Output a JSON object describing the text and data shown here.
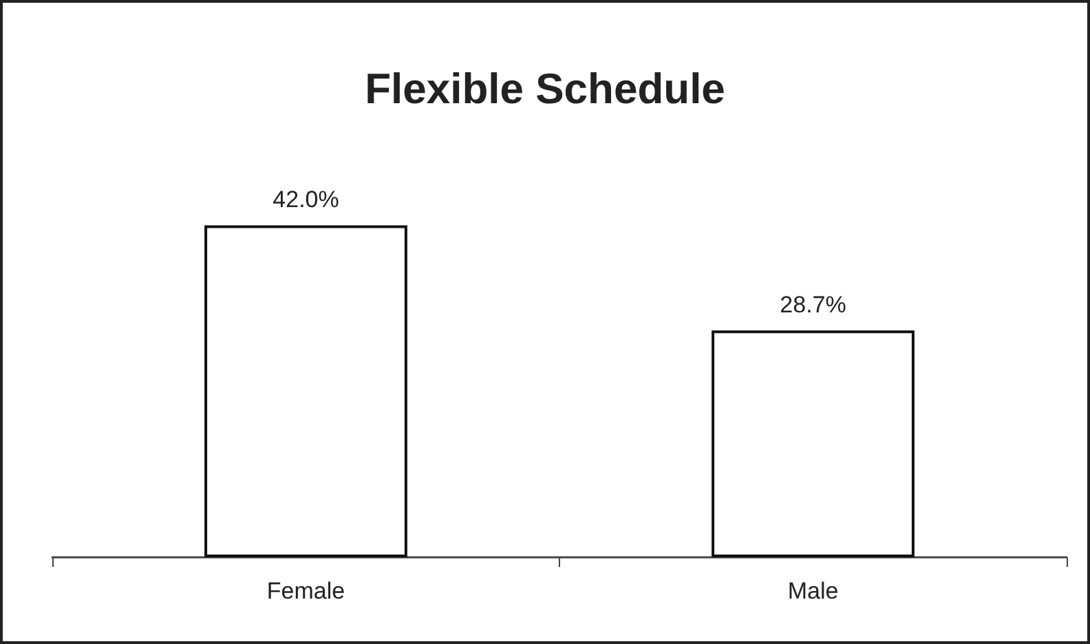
{
  "chart_data": {
    "type": "bar",
    "title": "Flexible Schedule",
    "categories": [
      "Female",
      "Male"
    ],
    "values": [
      42.0,
      28.7
    ],
    "value_labels": [
      "42.0%",
      "28.7%"
    ],
    "color": "#ffffff"
  }
}
